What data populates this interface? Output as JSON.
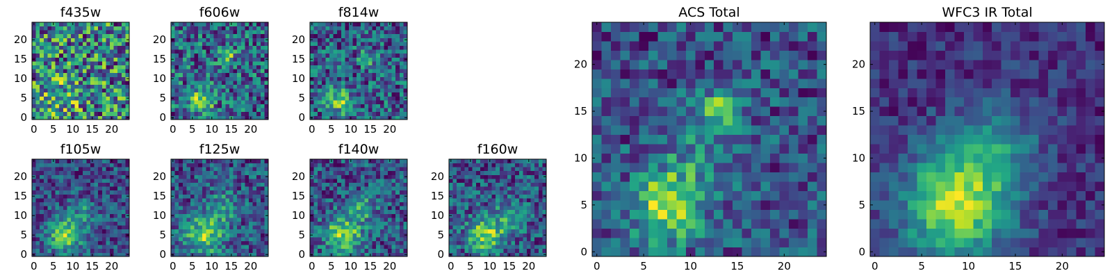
{
  "chart_data": [
    {
      "type": "heatmap",
      "title": "f435w",
      "grid_size": 25,
      "seed": 435,
      "bright_spots": [
        {
          "x": 7,
          "y": 5,
          "s": 3.5,
          "a": 0.18
        }
      ],
      "noise": 0.75,
      "base": 0.62,
      "cmap": "viridis",
      "xticks": [
        0,
        5,
        10,
        15,
        20
      ],
      "yticks": [
        0,
        5,
        10,
        15,
        20
      ],
      "xlim": [
        -0.5,
        24.5
      ],
      "ylim": [
        -0.5,
        24.5
      ]
    },
    {
      "type": "heatmap",
      "title": "f606w",
      "grid_size": 25,
      "seed": 606,
      "bright_spots": [
        {
          "x": 7,
          "y": 4.5,
          "s": 2.2,
          "a": 0.4
        },
        {
          "x": 14,
          "y": 15.5,
          "s": 1.3,
          "a": 0.3
        }
      ],
      "noise": 0.5,
      "base": 0.5,
      "cmap": "viridis",
      "xticks": [
        0,
        5,
        10,
        15,
        20
      ],
      "yticks": [
        0,
        5,
        10,
        15,
        20
      ],
      "xlim": [
        -0.5,
        24.5
      ],
      "ylim": [
        -0.5,
        24.5
      ]
    },
    {
      "type": "heatmap",
      "title": "f814w",
      "grid_size": 25,
      "seed": 814,
      "bright_spots": [
        {
          "x": 7,
          "y": 4.5,
          "s": 2.2,
          "a": 0.42
        },
        {
          "x": 14,
          "y": 15.5,
          "s": 1.3,
          "a": 0.32
        }
      ],
      "noise": 0.5,
      "base": 0.5,
      "cmap": "viridis",
      "xticks": [
        0,
        5,
        10,
        15,
        20
      ],
      "yticks": [
        0,
        5,
        10,
        15,
        20
      ],
      "xlim": [
        -0.5,
        24.5
      ],
      "ylim": [
        -0.5,
        24.5
      ]
    },
    {
      "type": "heatmap",
      "title": "f105w",
      "grid_size": 25,
      "seed": 105,
      "bright_spots": [
        {
          "x": 8,
          "y": 5,
          "s": 3.2,
          "a": 0.5
        },
        {
          "x": 13,
          "y": 11,
          "s": 2.5,
          "a": 0.22
        }
      ],
      "noise": 0.45,
      "base": 0.42,
      "cmap": "viridis",
      "xticks": [
        0,
        5,
        10,
        15,
        20
      ],
      "yticks": [
        0,
        5,
        10,
        15,
        20
      ],
      "xlim": [
        -0.5,
        24.5
      ],
      "ylim": [
        -0.5,
        24.5
      ]
    },
    {
      "type": "heatmap",
      "title": "f125w",
      "grid_size": 25,
      "seed": 125,
      "bright_spots": [
        {
          "x": 8,
          "y": 5,
          "s": 3.6,
          "a": 0.45
        },
        {
          "x": 13,
          "y": 12,
          "s": 3,
          "a": 0.25
        }
      ],
      "noise": 0.45,
      "base": 0.47,
      "cmap": "viridis",
      "xticks": [
        0,
        5,
        10,
        15,
        20
      ],
      "yticks": [
        0,
        5,
        10,
        15,
        20
      ],
      "xlim": [
        -0.5,
        24.5
      ],
      "ylim": [
        -0.5,
        24.5
      ]
    },
    {
      "type": "heatmap",
      "title": "f140w",
      "grid_size": 25,
      "seed": 140,
      "bright_spots": [
        {
          "x": 8,
          "y": 5,
          "s": 3.5,
          "a": 0.45
        },
        {
          "x": 13,
          "y": 12,
          "s": 2.8,
          "a": 0.22
        }
      ],
      "noise": 0.45,
      "base": 0.45,
      "cmap": "viridis",
      "xticks": [
        0,
        5,
        10,
        15,
        20
      ],
      "yticks": [
        0,
        5,
        10,
        15,
        20
      ],
      "xlim": [
        -0.5,
        24.5
      ],
      "ylim": [
        -0.5,
        24.5
      ]
    },
    {
      "type": "heatmap",
      "title": "f160w",
      "grid_size": 25,
      "seed": 160,
      "bright_spots": [
        {
          "x": 9,
          "y": 5,
          "s": 3.2,
          "a": 0.5
        },
        {
          "x": 15,
          "y": 10,
          "s": 3,
          "a": 0.2
        }
      ],
      "noise": 0.45,
      "base": 0.4,
      "cmap": "viridis",
      "xticks": [
        0,
        5,
        10,
        15,
        20
      ],
      "yticks": [
        0,
        5,
        10,
        15,
        20
      ],
      "xlim": [
        -0.5,
        24.5
      ],
      "ylim": [
        -0.5,
        24.5
      ]
    },
    {
      "type": "heatmap",
      "title": "ACS Total",
      "grid_size": 25,
      "seed": 999,
      "bright_spots": [
        {
          "x": 7.5,
          "y": 5,
          "s": 2.6,
          "a": 0.45
        },
        {
          "x": 13.5,
          "y": 15.5,
          "s": 1.3,
          "a": 0.5
        },
        {
          "x": 11,
          "y": 11,
          "s": 3,
          "a": 0.15
        }
      ],
      "noise": 0.35,
      "base": 0.5,
      "cmap": "viridis",
      "xticks": [
        0,
        5,
        10,
        15,
        20
      ],
      "yticks": [
        0,
        5,
        10,
        15,
        20
      ],
      "xlim": [
        -0.5,
        24.5
      ],
      "ylim": [
        -0.5,
        24.5
      ]
    },
    {
      "type": "heatmap",
      "title": "WFC3 IR Total",
      "grid_size": 25,
      "seed": 777,
      "bright_spots": [
        {
          "x": 8.5,
          "y": 5,
          "s": 4,
          "a": 0.5
        },
        {
          "x": 13,
          "y": 11,
          "s": 3.5,
          "a": 0.2
        }
      ],
      "noise": 0.2,
      "base": 0.42,
      "cmap": "viridis",
      "xticks": [
        0,
        5,
        10,
        15,
        20
      ],
      "yticks": [
        0,
        5,
        10,
        15,
        20
      ],
      "xlim": [
        -0.5,
        24.5
      ],
      "ylim": [
        -0.5,
        24.5
      ]
    }
  ]
}
